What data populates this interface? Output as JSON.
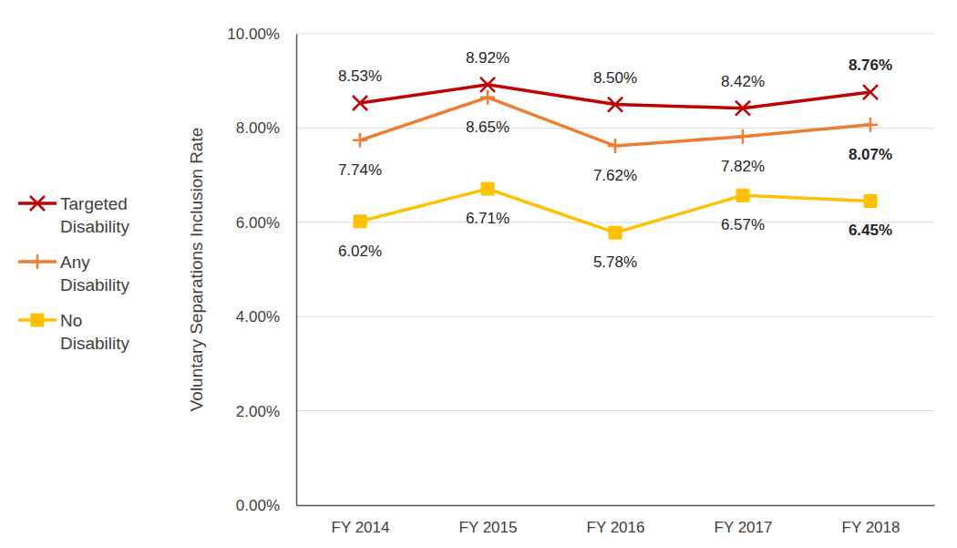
{
  "chart_data": {
    "type": "line",
    "y_label": "Voluntary Separations Inclusion Rate",
    "categories": [
      "FY 2014",
      "FY 2015",
      "FY 2016",
      "FY 2017",
      "FY 2018"
    ],
    "series": [
      {
        "name": "Targeted Disability",
        "color": "#C00000",
        "marker": "x",
        "values": [
          8.53,
          8.92,
          8.5,
          8.42,
          8.76
        ],
        "value_labels": [
          "8.53%",
          "8.92%",
          "8.50%",
          "8.42%",
          "8.76%"
        ]
      },
      {
        "name": "Any Disability",
        "color": "#ED7D31",
        "marker": "plus",
        "values": [
          7.74,
          8.65,
          7.62,
          7.82,
          8.07
        ],
        "value_labels": [
          "7.74%",
          "8.65%",
          "7.62%",
          "7.82%",
          "8.07%"
        ]
      },
      {
        "name": "No Disability",
        "color": "#FFC000",
        "marker": "square",
        "values": [
          6.02,
          6.71,
          5.78,
          6.57,
          6.45
        ],
        "value_labels": [
          "6.02%",
          "6.71%",
          "5.78%",
          "6.57%",
          "6.45%"
        ]
      }
    ],
    "ylim": [
      0,
      10
    ],
    "yticks": [
      {
        "value": 0,
        "label": "0.00%"
      },
      {
        "value": 2,
        "label": "2.00%"
      },
      {
        "value": 4,
        "label": "4.00%"
      },
      {
        "value": 6,
        "label": "6.00%"
      },
      {
        "value": 8,
        "label": "8.00%"
      },
      {
        "value": 10,
        "label": "10.00%"
      }
    ],
    "grid": true,
    "data_labels": true,
    "legend": "left"
  }
}
